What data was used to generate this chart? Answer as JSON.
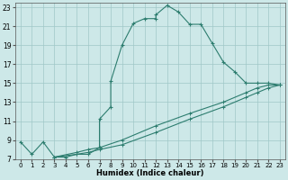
{
  "background_color": "#cde8e8",
  "grid_color": "#a0c8c8",
  "line_color": "#2d7d6f",
  "xlabel": "Humidex (Indice chaleur)",
  "xlim": [
    -0.5,
    23.5
  ],
  "ylim": [
    7,
    23.5
  ],
  "xticks": [
    0,
    1,
    2,
    3,
    4,
    5,
    6,
    7,
    8,
    9,
    10,
    11,
    12,
    13,
    14,
    15,
    16,
    17,
    18,
    19,
    20,
    21,
    22,
    23
  ],
  "yticks": [
    7,
    9,
    11,
    13,
    15,
    17,
    19,
    21,
    23
  ],
  "series_main": [
    [
      0,
      8.8
    ],
    [
      1,
      7.5
    ],
    [
      2,
      8.8
    ],
    [
      3,
      7.2
    ],
    [
      4,
      7.2
    ],
    [
      5,
      7.5
    ],
    [
      6,
      7.5
    ],
    [
      7,
      8.2
    ],
    [
      7,
      11.2
    ],
    [
      8,
      12.5
    ],
    [
      8,
      15.2
    ],
    [
      9,
      19.0
    ],
    [
      10,
      21.3
    ],
    [
      11,
      21.8
    ],
    [
      12,
      21.8
    ],
    [
      12,
      22.2
    ],
    [
      13,
      23.2
    ],
    [
      14,
      22.5
    ],
    [
      15,
      21.2
    ],
    [
      16,
      21.2
    ],
    [
      17,
      19.2
    ],
    [
      18,
      17.2
    ],
    [
      19,
      16.2
    ],
    [
      20,
      15.0
    ],
    [
      21,
      15.0
    ],
    [
      22,
      15.0
    ],
    [
      23,
      14.8
    ]
  ],
  "series2": [
    [
      3,
      7.2
    ],
    [
      5,
      7.7
    ],
    [
      6,
      8.0
    ],
    [
      7,
      8.2
    ],
    [
      9,
      9.0
    ],
    [
      12,
      10.5
    ],
    [
      15,
      11.8
    ],
    [
      18,
      13.0
    ],
    [
      20,
      14.0
    ],
    [
      21,
      14.5
    ],
    [
      22,
      14.8
    ],
    [
      23,
      14.8
    ]
  ],
  "series3": [
    [
      3,
      7.2
    ],
    [
      5,
      7.5
    ],
    [
      6,
      7.7
    ],
    [
      7,
      8.0
    ],
    [
      9,
      8.5
    ],
    [
      12,
      9.8
    ],
    [
      15,
      11.2
    ],
    [
      18,
      12.5
    ],
    [
      20,
      13.5
    ],
    [
      21,
      14.0
    ],
    [
      22,
      14.5
    ],
    [
      23,
      14.8
    ]
  ]
}
